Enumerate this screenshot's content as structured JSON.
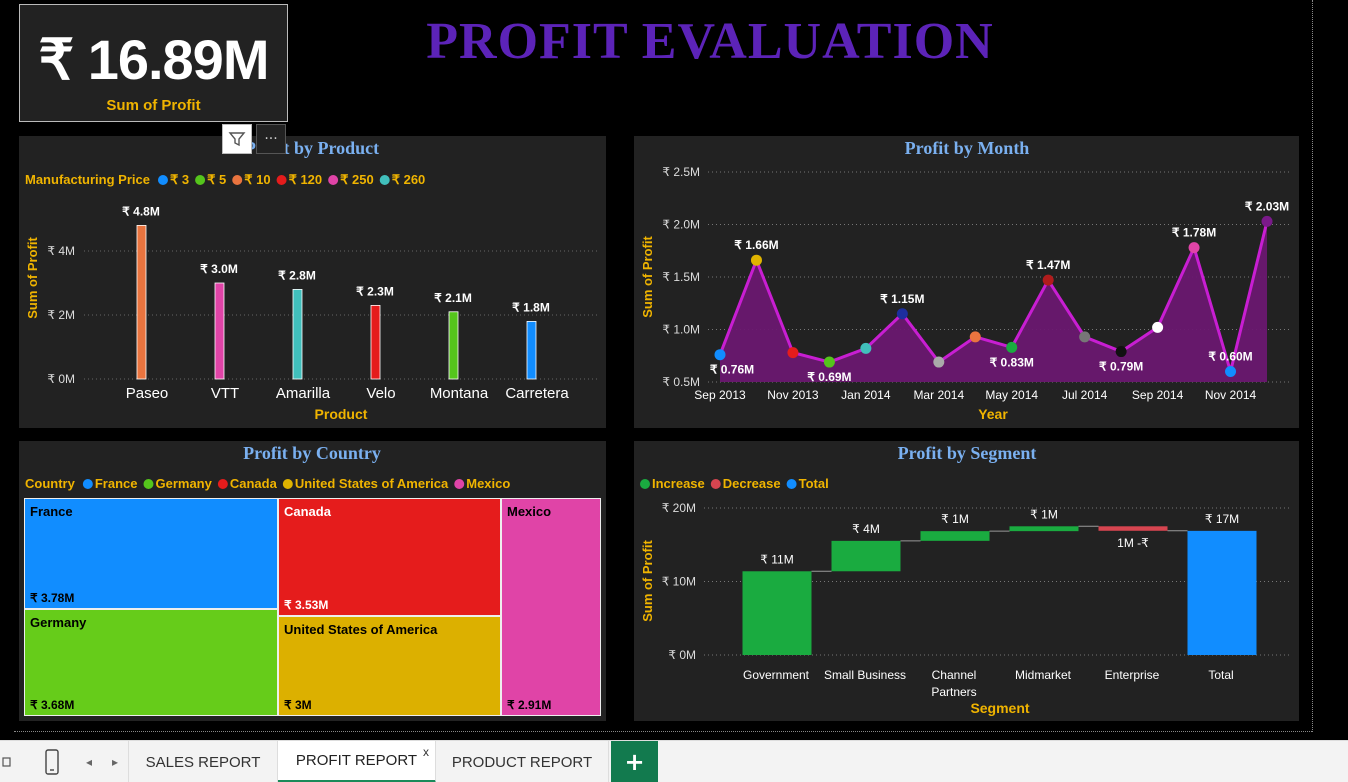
{
  "kpi": {
    "value": "₹ 16.89M",
    "label": "Sum of Profit"
  },
  "page_title": "PROFIT EVALUATION",
  "colors": {
    "title": "#5c23b8",
    "gold": "#f0b400",
    "panel_title": "#7ab0f0",
    "panel_bg": "#222222",
    "purple_line": "#c81ed2",
    "purple_fill": "#6a1870"
  },
  "product_panel": {
    "title": "Profit by Product",
    "legend_title": "Manufacturing Price",
    "legend": [
      {
        "label": "₹ 3",
        "color": "#118dff"
      },
      {
        "label": "₹ 5",
        "color": "#55c51c"
      },
      {
        "label": "₹ 10",
        "color": "#e9743f"
      },
      {
        "label": "₹ 120",
        "color": "#e51c1c"
      },
      {
        "label": "₹ 250",
        "color": "#e044a7"
      },
      {
        "label": "₹ 260",
        "color": "#41bfbc"
      }
    ]
  },
  "month_panel": {
    "title": "Profit by Month"
  },
  "country_panel": {
    "title": "Profit by Country",
    "legend_title": "Country",
    "legend": [
      {
        "label": "France",
        "color": "#118dff"
      },
      {
        "label": "Germany",
        "color": "#55c51c"
      },
      {
        "label": "Canada",
        "color": "#e51c1c"
      },
      {
        "label": "United States of America",
        "color": "#e0b400"
      },
      {
        "label": "Mexico",
        "color": "#e044a7"
      }
    ],
    "cells": [
      {
        "name": "France",
        "value": "₹ 3.78M",
        "color": "#118dff",
        "text": "#000"
      },
      {
        "name": "Canada",
        "value": "₹ 3.53M",
        "color": "#e51c1c",
        "text": "#fff"
      },
      {
        "name": "Mexico",
        "value": "₹ 2.91M",
        "color": "#e044a7",
        "text": "#000"
      },
      {
        "name": "Germany",
        "value": "₹ 3.68M",
        "color": "#66cc1a",
        "text": "#000"
      },
      {
        "name": "United States of America",
        "value": "₹ 3M",
        "color": "#dcb000",
        "text": "#000"
      }
    ]
  },
  "segment_panel": {
    "title": "Profit by Segment",
    "legend": [
      {
        "label": "Increase",
        "color": "#1aab40"
      },
      {
        "label": "Decrease",
        "color": "#d64550"
      },
      {
        "label": "Total",
        "color": "#118dff"
      }
    ]
  },
  "tabs": {
    "items": [
      {
        "label": "SALES REPORT",
        "active": false
      },
      {
        "label": "PROFIT REPORT",
        "active": true
      },
      {
        "label": "PRODUCT REPORT",
        "active": false
      }
    ],
    "close_label": "x",
    "add_label": "+"
  },
  "chart_data": [
    {
      "type": "bar",
      "title": "Profit by Product",
      "xlabel": "Product",
      "ylabel": "Sum of Profit",
      "ylim": [
        0,
        5.2
      ],
      "yticks": [
        "₹ 0M",
        "₹ 2M",
        "₹ 4M"
      ],
      "yticks_values": [
        0,
        2,
        4
      ],
      "categories": [
        "Paseo",
        "VTT",
        "Amarilla",
        "Velo",
        "Montana",
        "Carretera"
      ],
      "values": [
        4.8,
        3.0,
        2.8,
        2.3,
        2.1,
        1.8
      ],
      "labels": [
        "₹ 4.8M",
        "₹ 3.0M",
        "₹ 2.8M",
        "₹ 2.3M",
        "₹ 2.1M",
        "₹ 1.8M"
      ],
      "colors": [
        "#e9743f",
        "#e044a7",
        "#41bfbc",
        "#e51c1c",
        "#55c51c",
        "#118dff"
      ],
      "grid": true,
      "legend_position": "top-left"
    },
    {
      "type": "area",
      "title": "Profit by Month",
      "xlabel": "Year",
      "ylabel": "Sum of Profit",
      "ylim": [
        0.5,
        2.5
      ],
      "yticks": [
        "₹ 0.5M",
        "₹ 1.0M",
        "₹ 1.5M",
        "₹ 2.0M",
        "₹ 2.5M"
      ],
      "yticks_values": [
        0.5,
        1.0,
        1.5,
        2.0,
        2.5
      ],
      "xticks": [
        "Sep 2013",
        "Nov 2013",
        "Jan 2014",
        "Mar 2014",
        "May 2014",
        "Jul 2014",
        "Sep 2014",
        "Nov 2014"
      ],
      "x": [
        "Sep 2013",
        "Oct 2013",
        "Nov 2013",
        "Dec 2013",
        "Jan 2014",
        "Feb 2014",
        "Mar 2014",
        "Apr 2014",
        "May 2014",
        "Jun 2014",
        "Jul 2014",
        "Aug 2014",
        "Sep 2014",
        "Oct 2014",
        "Nov 2014",
        "Dec 2014"
      ],
      "values": [
        0.76,
        1.66,
        0.78,
        0.69,
        0.82,
        1.15,
        0.69,
        0.93,
        0.83,
        1.47,
        0.93,
        0.79,
        1.02,
        1.78,
        0.6,
        2.03
      ],
      "point_colors": [
        "#118dff",
        "#e0b400",
        "#e51c1c",
        "#55c51c",
        "#41bfbc",
        "#1c2e9e",
        "#aaaaaa",
        "#e9743f",
        "#1aab40",
        "#b01c1c",
        "#777777",
        "#111111",
        "#ffffff",
        "#e044a7",
        "#118dff",
        "#7a1a8a"
      ],
      "data_labels": [
        {
          "index": 0,
          "text": "₹ 0.76M",
          "pos": "below"
        },
        {
          "index": 1,
          "text": "₹ 1.66M",
          "pos": "above"
        },
        {
          "index": 3,
          "text": "₹ 0.69M",
          "pos": "below"
        },
        {
          "index": 5,
          "text": "₹ 1.15M",
          "pos": "above"
        },
        {
          "index": 8,
          "text": "₹ 0.83M",
          "pos": "below"
        },
        {
          "index": 9,
          "text": "₹ 1.47M",
          "pos": "above"
        },
        {
          "index": 11,
          "text": "₹ 0.79M",
          "pos": "below"
        },
        {
          "index": 13,
          "text": "₹ 1.78M",
          "pos": "above"
        },
        {
          "index": 14,
          "text": "₹ 0.60M",
          "pos": "above"
        },
        {
          "index": 15,
          "text": "₹ 2.03M",
          "pos": "above"
        }
      ],
      "grid": true
    },
    {
      "type": "treemap",
      "title": "Profit by Country",
      "categories": [
        "France",
        "Canada",
        "Mexico",
        "Germany",
        "United States of America"
      ],
      "values": [
        3.78,
        3.53,
        2.91,
        3.68,
        3.0
      ],
      "labels": [
        "₹ 3.78M",
        "₹ 3.53M",
        "₹ 2.91M",
        "₹ 3.68M",
        "₹ 3M"
      ]
    },
    {
      "type": "waterfall",
      "title": "Profit by Segment",
      "xlabel": "Segment",
      "ylabel": "Sum of Profit",
      "ylim": [
        0,
        20
      ],
      "yticks": [
        "₹ 0M",
        "₹ 10M",
        "₹ 20M"
      ],
      "yticks_values": [
        0,
        10,
        20
      ],
      "categories": [
        "Government",
        "Small Business",
        "Channel Partners",
        "Midmarket",
        "Enterprise",
        "Total"
      ],
      "category_lines": [
        [
          "Government"
        ],
        [
          "Small Business"
        ],
        [
          "Channel",
          "Partners"
        ],
        [
          "Midmarket"
        ],
        [
          "Enterprise"
        ],
        [
          "Total"
        ]
      ],
      "values": [
        11.39,
        4.14,
        1.32,
        0.66,
        -0.61,
        16.89
      ],
      "kinds": [
        "increase",
        "increase",
        "increase",
        "increase",
        "decrease",
        "total"
      ],
      "labels": [
        "₹ 11M",
        "₹ 4M",
        "₹ 1M",
        "₹ 1M",
        "1M -₹",
        "₹ 17M"
      ],
      "grid": true,
      "legend_position": "top-left"
    }
  ]
}
